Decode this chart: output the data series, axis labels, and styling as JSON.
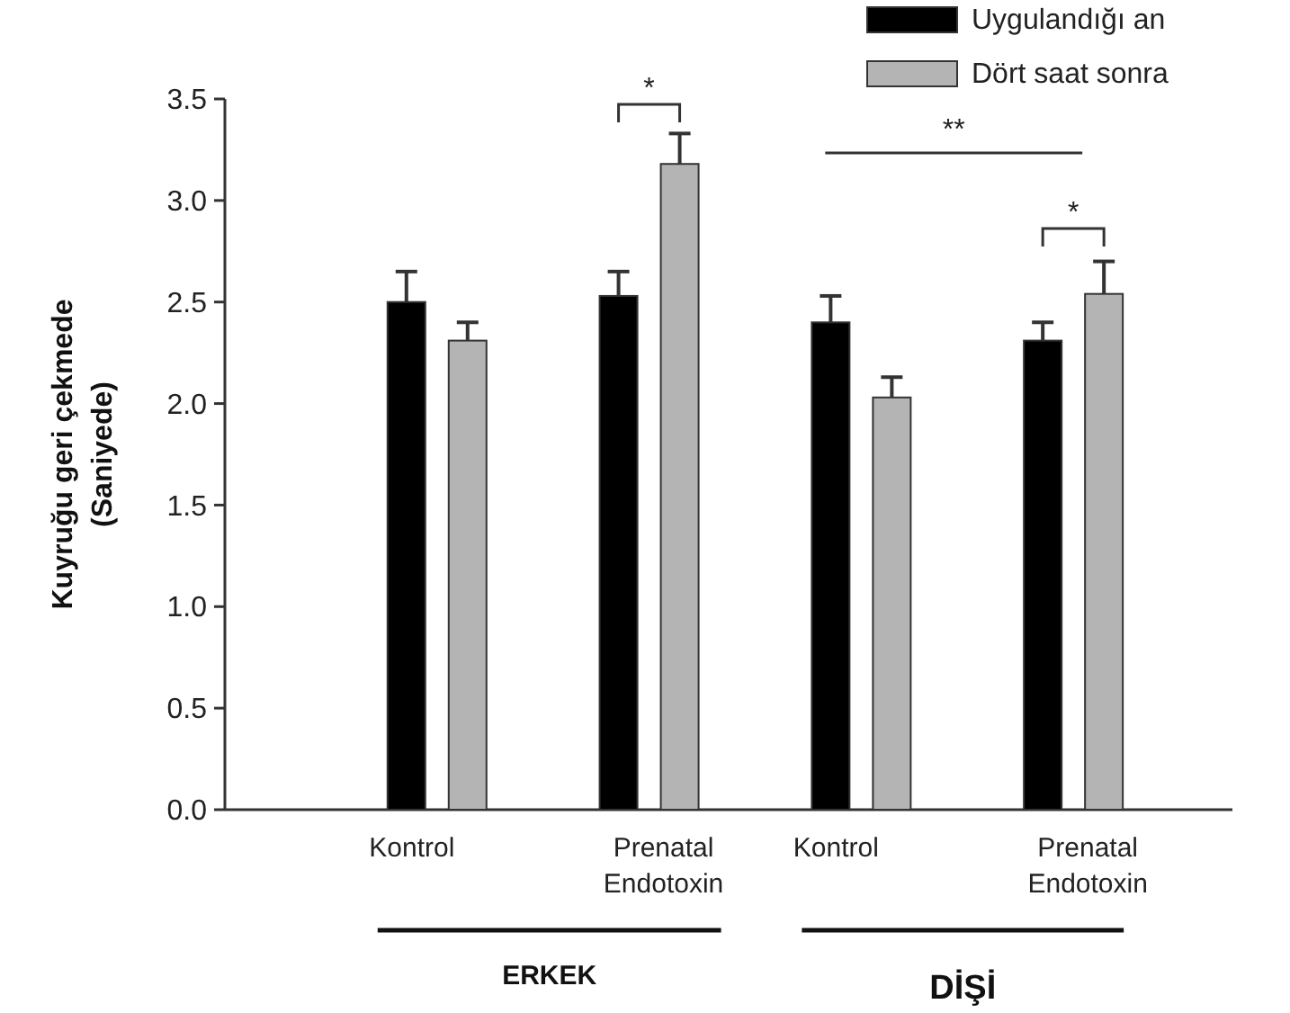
{
  "chart_data": {
    "type": "bar",
    "ylabel": "Kuyruğu geri çekmede\n(Saniyede)",
    "categories": [
      "Kontrol",
      "Prenatal\nEndotoxin",
      "Kontrol",
      "Prenatal\nEndotoxin"
    ],
    "series": [
      {
        "name": "Uygulandığı an",
        "color": "#000000",
        "values": [
          2.5,
          2.53,
          2.4,
          2.31
        ],
        "errors": [
          0.15,
          0.12,
          0.13,
          0.09
        ]
      },
      {
        "name": "Dört saat sonra",
        "color": "#b4b4b4",
        "values": [
          2.31,
          3.18,
          2.03,
          2.54
        ],
        "errors": [
          0.09,
          0.15,
          0.1,
          0.16
        ]
      }
    ],
    "ylim": [
      0,
      3.5
    ],
    "yticks": [
      {
        "value": 0,
        "label": "0.0"
      },
      {
        "value": 0.5,
        "label": "0.5"
      },
      {
        "value": 1,
        "label": "1.0"
      },
      {
        "value": 1.5,
        "label": "1.5"
      },
      {
        "value": 2,
        "label": "2.0"
      },
      {
        "value": 2.5,
        "label": "2.5"
      },
      {
        "value": 3,
        "label": "3.0"
      },
      {
        "value": 3.5,
        "label": "3.5"
      }
    ],
    "grid": false,
    "legend": "top right",
    "annotations": [
      "*",
      "**",
      "*",
      "ERKEK",
      "DİŞİ"
    ]
  }
}
